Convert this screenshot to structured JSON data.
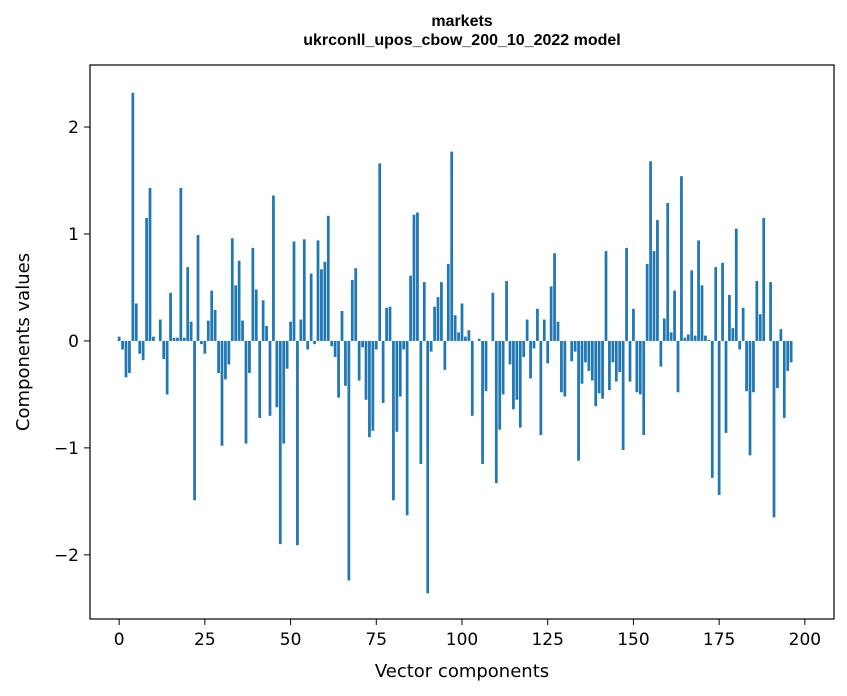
{
  "chart_data": {
    "type": "bar",
    "title": "markets",
    "subtitle": "ukrconll_upos_cbow_200_10_2022 model",
    "xlabel": "Vector components",
    "ylabel": "Components values",
    "xlim": [
      -8.5,
      208.5
    ],
    "ylim": [
      -2.6,
      2.58
    ],
    "xticks": [
      0,
      25,
      50,
      75,
      100,
      125,
      150,
      175,
      200
    ],
    "yticks": [
      -2,
      -1,
      0,
      1,
      2
    ],
    "xtick_labels": [
      "0",
      "25",
      "50",
      "75",
      "100",
      "125",
      "150",
      "175",
      "200"
    ],
    "ytick_labels": [
      "−2",
      "−1",
      "0",
      "1",
      "2"
    ],
    "grid": false,
    "bar_color": "#1f77b4",
    "values": [
      0.04,
      -0.08,
      -0.34,
      -0.3,
      2.32,
      0.35,
      -0.12,
      -0.18,
      1.15,
      1.43,
      0.04,
      0.0,
      0.2,
      -0.17,
      -0.5,
      0.45,
      0.03,
      0.03,
      1.43,
      0.03,
      0.69,
      0.18,
      -1.49,
      0.99,
      -0.03,
      -0.12,
      0.19,
      0.47,
      0.29,
      -0.3,
      -0.98,
      -0.36,
      -0.22,
      0.96,
      0.52,
      0.75,
      0.19,
      -0.96,
      -0.3,
      0.87,
      0.48,
      -0.72,
      0.38,
      0.14,
      -0.7,
      1.36,
      -0.62,
      -1.9,
      -0.96,
      -0.26,
      0.18,
      0.93,
      -1.91,
      0.2,
      0.95,
      -0.08,
      0.63,
      -0.03,
      0.94,
      0.67,
      0.74,
      1.17,
      -0.05,
      -0.15,
      -0.53,
      0.28,
      -0.42,
      -2.24,
      0.57,
      0.68,
      -0.37,
      -0.06,
      -0.55,
      -0.9,
      -0.84,
      -0.08,
      1.66,
      -0.58,
      0.31,
      0.32,
      -1.49,
      -0.85,
      -0.52,
      -0.08,
      -1.63,
      0.61,
      1.18,
      1.2,
      -1.15,
      0.55,
      -2.36,
      -0.1,
      0.32,
      0.41,
      0.55,
      -0.27,
      0.72,
      1.77,
      0.24,
      0.08,
      0.35,
      0.04,
      0.1,
      -0.7,
      0.0,
      0.02,
      -1.15,
      -0.47,
      0.0,
      0.45,
      -1.33,
      -0.83,
      -0.5,
      0.56,
      -0.22,
      -0.64,
      -0.55,
      -0.81,
      -0.15,
      0.2,
      -0.35,
      -0.07,
      0.3,
      -0.88,
      0.2,
      -0.21,
      0.51,
      0.82,
      0.18,
      -0.48,
      -0.52,
      0.0,
      -0.19,
      -0.1,
      -1.12,
      -0.4,
      -0.2,
      -0.28,
      -0.37,
      -0.61,
      -0.49,
      -0.54,
      0.84,
      -0.46,
      -0.2,
      -0.38,
      -0.29,
      -1.02,
      0.87,
      -0.38,
      0.3,
      -0.48,
      -0.5,
      -0.88,
      0.72,
      1.68,
      0.84,
      1.13,
      -0.24,
      0.21,
      1.29,
      0.08,
      0.47,
      -0.48,
      1.54,
      0.03,
      0.06,
      0.66,
      0.05,
      0.94,
      0.52,
      0.05,
      0.01,
      -1.28,
      0.69,
      -1.44,
      0.73,
      -0.86,
      0.43,
      0.12,
      1.05,
      -0.08,
      0.31,
      -0.47,
      -1.07,
      -0.48,
      0.56,
      0.25,
      1.15,
      0.0,
      0.55,
      -1.65,
      -0.44,
      0.11,
      -0.72,
      -0.28,
      -0.2
    ]
  }
}
